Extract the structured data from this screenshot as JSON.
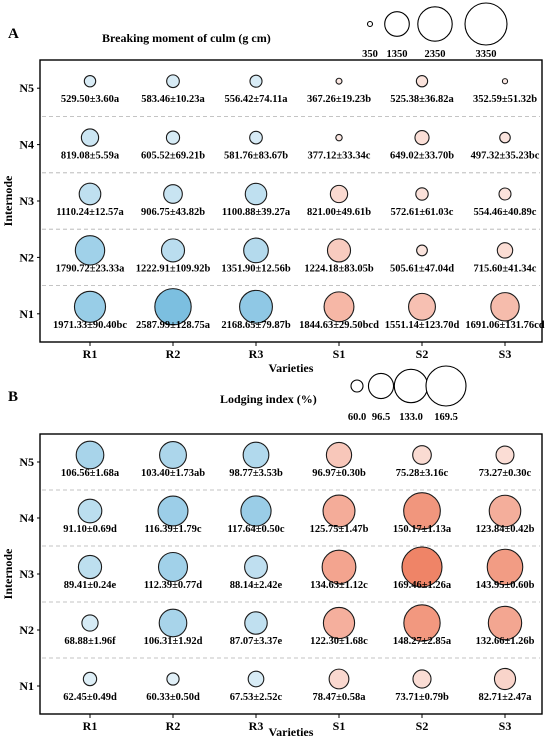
{
  "chart_data": [
    {
      "type": "bubble",
      "panel_label": "A",
      "legend_title": "Breaking moment of culm (g cm)",
      "legend_sizes": [
        350,
        1350,
        2350,
        3350
      ],
      "legend_labels": [
        "350",
        "1350",
        "2350",
        "3350"
      ],
      "xlabel": "Varieties",
      "ylabel": "Internode",
      "categories": [
        "R1",
        "R2",
        "R3",
        "S1",
        "S2",
        "S3"
      ],
      "rows": [
        "N5",
        "N4",
        "N3",
        "N2",
        "N1"
      ],
      "values": [
        [
          529.5,
          583.46,
          556.42,
          367.26,
          525.38,
          352.59
        ],
        [
          819.08,
          605.52,
          581.76,
          377.12,
          649.02,
          497.32
        ],
        [
          1110.24,
          906.75,
          1100.88,
          821.0,
          572.61,
          554.46
        ],
        [
          1790.72,
          1222.91,
          1351.9,
          1224.18,
          505.61,
          715.6
        ],
        [
          1971.33,
          2587.99,
          2168.65,
          1844.63,
          1551.14,
          1691.06
        ]
      ],
      "labels": [
        [
          "529.50±3.60a",
          "583.46±10.23a",
          "556.42±74.11a",
          "367.26±19.23b",
          "525.38±36.82a",
          "352.59±51.32b"
        ],
        [
          "819.08±5.59a",
          "605.52±69.21b",
          "581.76±83.67b",
          "377.12±33.34c",
          "649.02±33.70b",
          "497.32±35.23bc"
        ],
        [
          "1110.24±12.57a",
          "906.75±43.82b",
          "1100.88±39.27a",
          "821.00±49.61b",
          "572.61±61.03c",
          "554.46±40.89c"
        ],
        [
          "1790.72±23.33a",
          "1222.91±109.92b",
          "1351.90±12.56b",
          "1224.18±83.05b",
          "505.61±47.04d",
          "715.60±41.34c"
        ],
        [
          "1971.33±90.40bc",
          "2587.99±128.75a",
          "2168.65±79.87b",
          "1844.63±29.50bcd",
          "1551.14±123.70d",
          "1691.06±131.76cd"
        ]
      ],
      "colors": {
        "R": "#5aaed8",
        "S": "#ef8467"
      }
    },
    {
      "type": "bubble",
      "panel_label": "B",
      "legend_title": "Lodging index (%)",
      "legend_sizes": [
        60.0,
        96.5,
        133.0,
        169.5
      ],
      "legend_labels": [
        "60.0",
        "96.5",
        "133.0",
        "169.5"
      ],
      "xlabel": "Varieties",
      "ylabel": "Internode",
      "categories": [
        "R1",
        "R2",
        "R3",
        "S1",
        "S2",
        "S3"
      ],
      "rows": [
        "N5",
        "N4",
        "N3",
        "N2",
        "N1"
      ],
      "values": [
        [
          106.56,
          103.4,
          98.77,
          96.97,
          75.28,
          73.27
        ],
        [
          91.1,
          116.39,
          117.64,
          125.75,
          150.17,
          123.84
        ],
        [
          89.41,
          112.39,
          88.14,
          134.63,
          169.46,
          143.95
        ],
        [
          68.88,
          106.31,
          87.07,
          122.3,
          148.27,
          132.66
        ],
        [
          62.45,
          60.33,
          67.53,
          78.47,
          73.71,
          82.71
        ]
      ],
      "labels": [
        [
          "106.56±1.68a",
          "103.40±1.73ab",
          "98.77±3.53b",
          "96.97±0.30b",
          "75.28±3.16c",
          "73.27±0.30c"
        ],
        [
          "91.10±0.69d",
          "116.39±1.79c",
          "117.64±0.50c",
          "125.75±1.47b",
          "150.17±1.13a",
          "123.84±0.42b"
        ],
        [
          "89.41±0.24e",
          "112.39±0.77d",
          "88.14±2.42e",
          "134.63±1.12c",
          "169.46±1.26a",
          "143.95±0.60b"
        ],
        [
          "68.88±1.96f",
          "106.31±1.92d",
          "87.07±3.37e",
          "122.30±1.68c",
          "148.27±2.85a",
          "132.66±1.26b"
        ],
        [
          "62.45±0.49d",
          "60.33±0.50d",
          "67.53±2.52c",
          "78.47±0.58a",
          "73.71±0.79b",
          "82.71±2.47a"
        ]
      ],
      "colors": {
        "R": "#5aaed8",
        "S": "#ef8467"
      }
    }
  ]
}
